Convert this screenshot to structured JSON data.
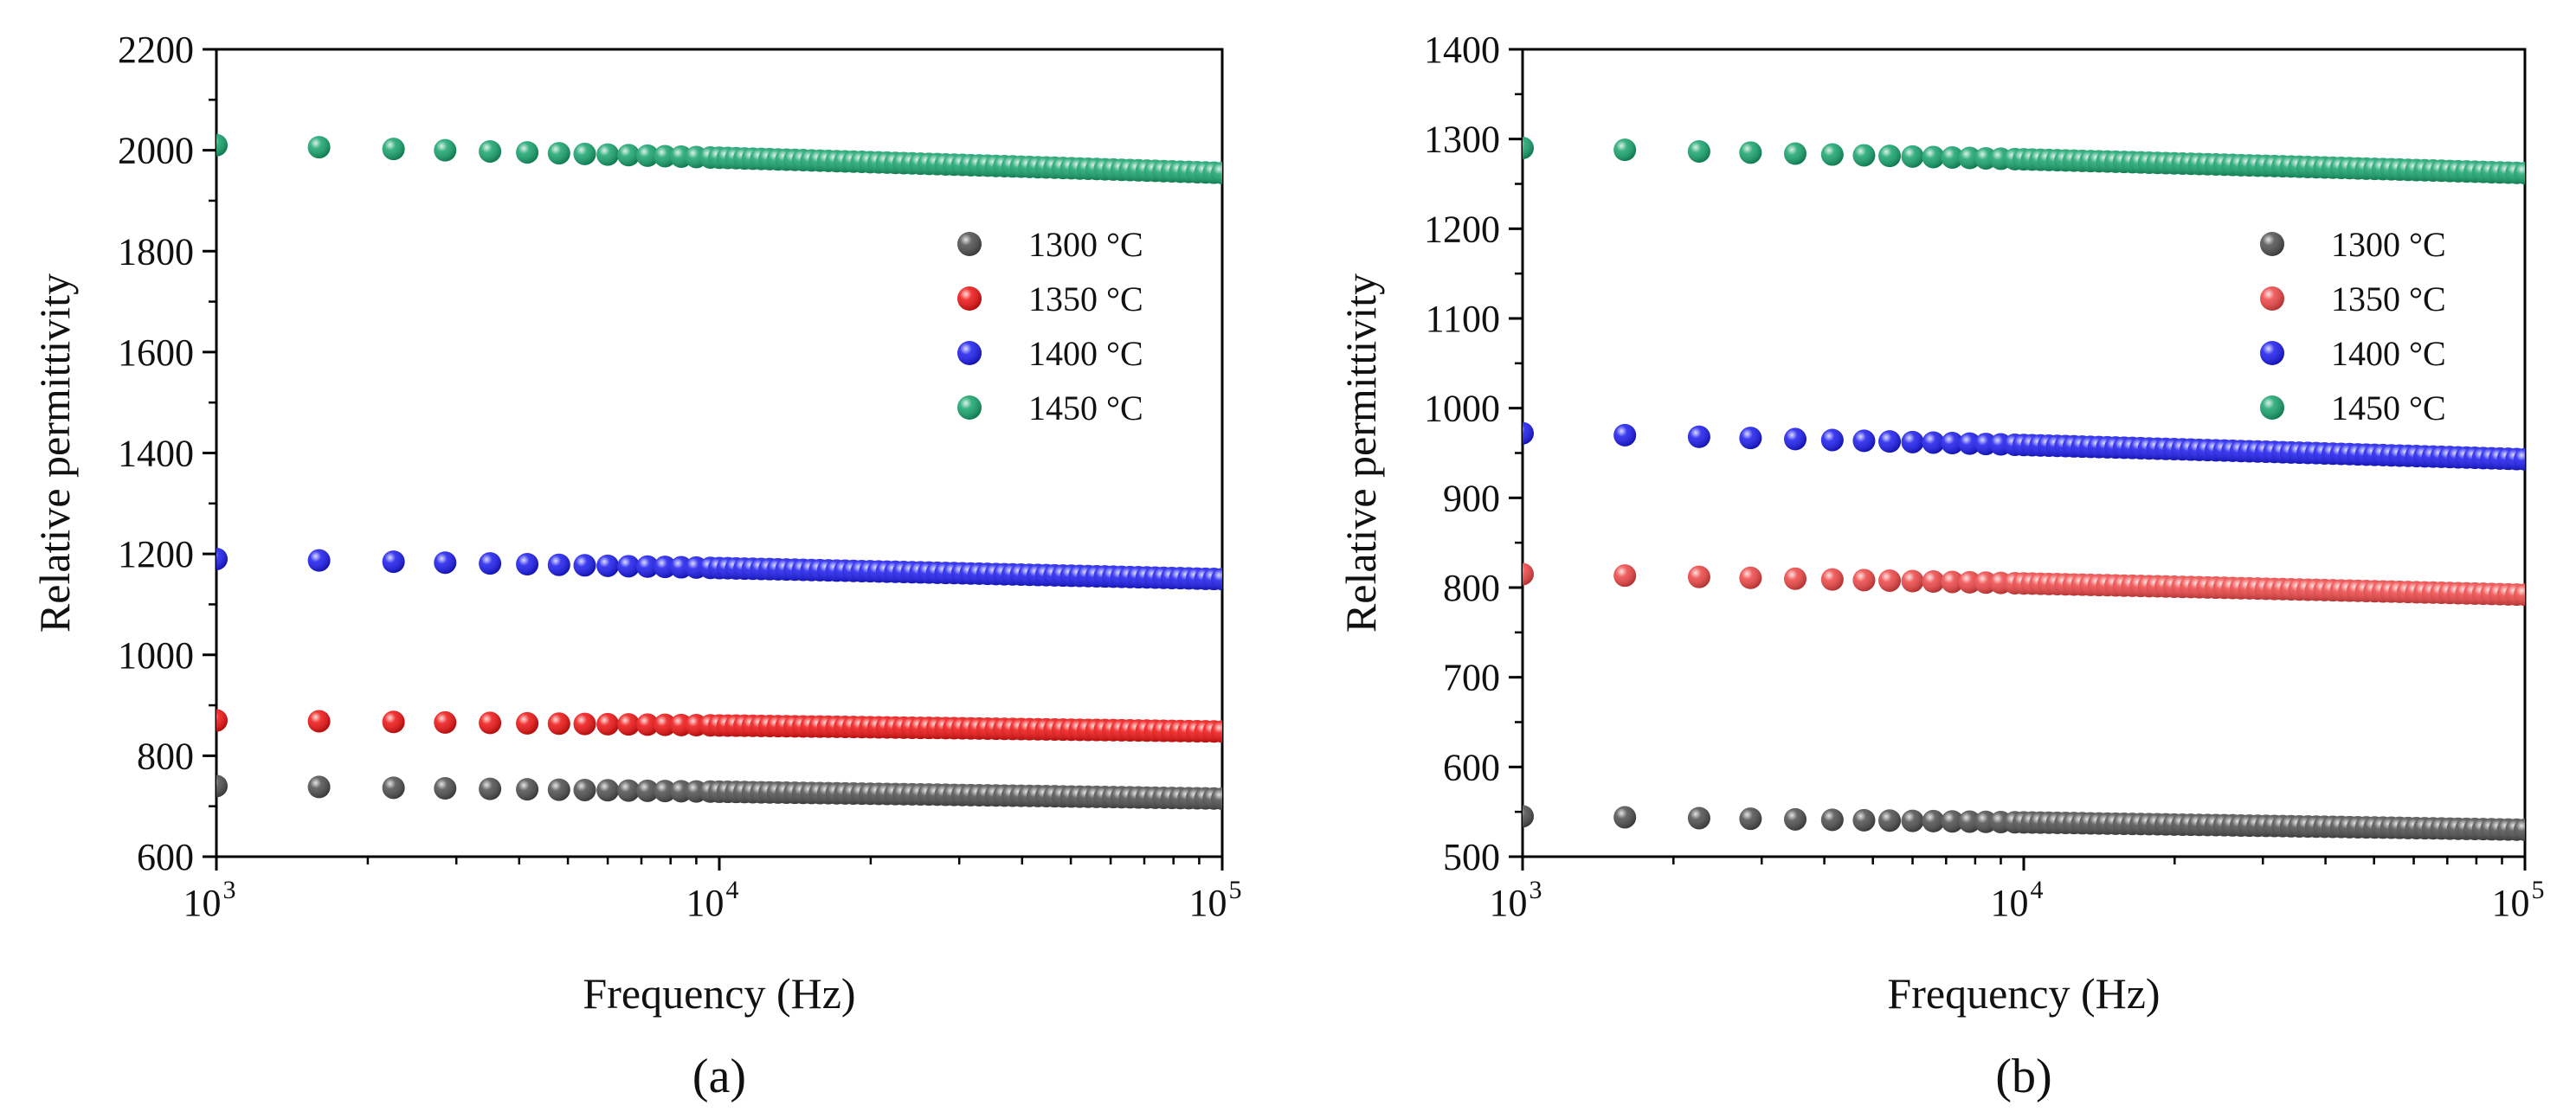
{
  "chart_data": [
    {
      "panel_label": "(a)",
      "type": "scatter",
      "xlabel": "Frequency (Hz)",
      "ylabel": "Relative permittivity",
      "xscale": "log",
      "xlim": [
        1000,
        100000
      ],
      "ylim": [
        600,
        2200
      ],
      "yticks": [
        600,
        800,
        1000,
        1200,
        1400,
        1600,
        1800,
        2000,
        2200
      ],
      "xticks": [
        {
          "base": "10",
          "exp": "3",
          "value": 1000
        },
        {
          "base": "10",
          "exp": "4",
          "value": 10000
        },
        {
          "base": "10",
          "exp": "5",
          "value": 100000
        }
      ],
      "legend_position": "right",
      "series": [
        {
          "name": "1300 °C",
          "color": "#4d4d4d",
          "start": 740,
          "end": 715
        },
        {
          "name": "1350 °C",
          "color": "#ee1111",
          "start": 870,
          "end": 848
        },
        {
          "name": "1400 °C",
          "color": "#1a1aee",
          "start": 1190,
          "end": 1150
        },
        {
          "name": "1450 °C",
          "color": "#16a36c",
          "start": 2010,
          "end": 1955
        }
      ]
    },
    {
      "panel_label": "(b)",
      "type": "scatter",
      "xlabel": "Frequency (Hz)",
      "ylabel": "Relative permittivity",
      "xscale": "log",
      "xlim": [
        1000,
        100000
      ],
      "ylim": [
        500,
        1400
      ],
      "yticks": [
        500,
        600,
        700,
        800,
        900,
        1000,
        1100,
        1200,
        1300,
        1400
      ],
      "xticks": [
        {
          "base": "10",
          "exp": "3",
          "value": 1000
        },
        {
          "base": "10",
          "exp": "4",
          "value": 10000
        },
        {
          "base": "10",
          "exp": "5",
          "value": 100000
        }
      ],
      "legend_position": "right",
      "series": [
        {
          "name": "1300 °C",
          "color": "#4d4d4d",
          "start": 545,
          "end": 530
        },
        {
          "name": "1350 °C",
          "color": "#ee4444",
          "start": 815,
          "end": 792
        },
        {
          "name": "1400 °C",
          "color": "#1a1aee",
          "start": 972,
          "end": 943
        },
        {
          "name": "1450 °C",
          "color": "#16a36c",
          "start": 1290,
          "end": 1262
        }
      ]
    }
  ]
}
